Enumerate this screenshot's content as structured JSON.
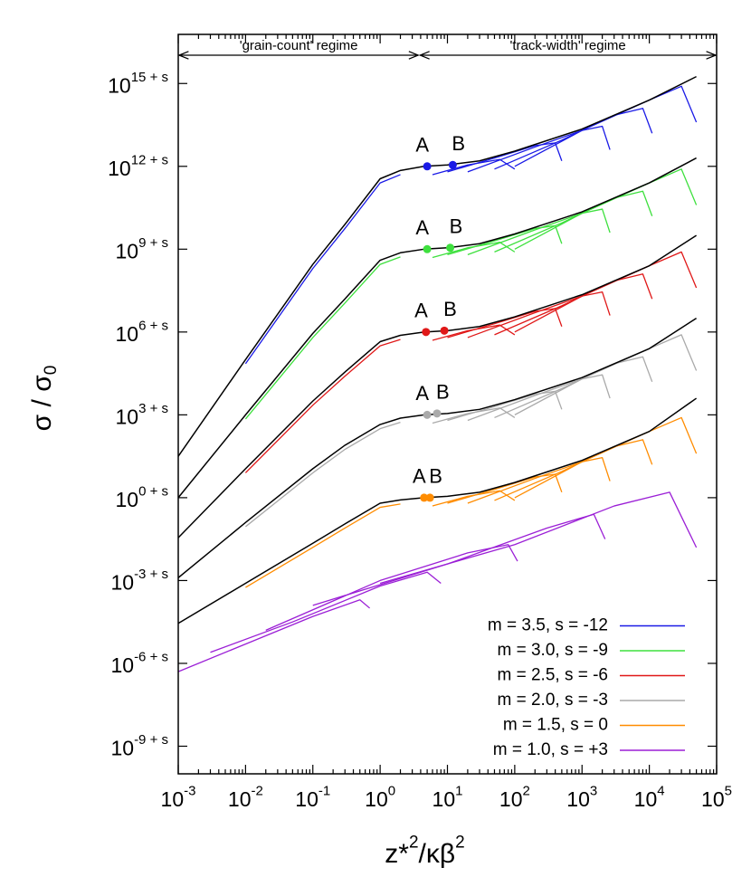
{
  "chart_data": {
    "type": "line",
    "xscale": "log",
    "yscale": "log",
    "xlim": [
      0.001,
      100000
    ],
    "ylim": [
      1e-10,
      6e+16
    ],
    "xticks": [
      {
        "value": 0.001,
        "label": "10",
        "sup": "-3"
      },
      {
        "value": 0.01,
        "label": "10",
        "sup": "-2"
      },
      {
        "value": 0.1,
        "label": "10",
        "sup": "-1"
      },
      {
        "value": 1,
        "label": "10",
        "sup": "0"
      },
      {
        "value": 10,
        "label": "10",
        "sup": "1"
      },
      {
        "value": 100,
        "label": "10",
        "sup": "2"
      },
      {
        "value": 1000,
        "label": "10",
        "sup": "3"
      },
      {
        "value": 10000,
        "label": "10",
        "sup": "4"
      },
      {
        "value": 100000,
        "label": "10",
        "sup": "5"
      }
    ],
    "yticks": [
      {
        "value": 1000000000000000.0,
        "label": "10",
        "sup": "15 + s"
      },
      {
        "value": 1000000000000.0,
        "label": "10",
        "sup": "12 + s"
      },
      {
        "value": 1000000000.0,
        "label": "10",
        "sup": "9 + s"
      },
      {
        "value": 1000000.0,
        "label": "10",
        "sup": "6 + s"
      },
      {
        "value": 1000.0,
        "label": "10",
        "sup": "3 + s"
      },
      {
        "value": 1,
        "label": "10",
        "sup": "0 + s"
      },
      {
        "value": 0.001,
        "label": "10",
        "sup": "-3 + s"
      },
      {
        "value": 1e-06,
        "label": "10",
        "sup": "-6 + s"
      },
      {
        "value": 1e-09,
        "label": "10",
        "sup": "-9 + s"
      }
    ],
    "minor_xticks": true,
    "xlabel": [
      {
        "text": "z*"
      },
      {
        "text": "2",
        "shift": "super"
      },
      {
        "text": "/κβ"
      },
      {
        "text": "2",
        "shift": "super"
      }
    ],
    "ylabel": [
      {
        "text": "σ / σ"
      },
      {
        "text": "0",
        "shift": "sub"
      }
    ],
    "legend": "lower right",
    "regime_boundary": 3.8,
    "annotations": [
      {
        "text": "'grain-count' regime"
      },
      {
        "text": "'track-width' regime"
      }
    ],
    "reference_curves": [
      {
        "color": "#000000",
        "x": [
          0.001,
          0.01,
          0.1,
          0.3,
          1,
          2,
          4.5,
          10,
          30,
          100,
          1000,
          10000,
          50000
        ],
        "values": [
          31.6,
          100000.0,
          282000000.0,
          7940000000.0,
          355000000000.0,
          708000000000.0,
          1000000000000.0,
          1120000000000.0,
          1580000000000.0,
          3550000000000.0,
          22400000000000.0,
          251000000000000.0,
          1780000000000000.0
        ]
      },
      {
        "color": "#000000",
        "x": [
          0.001,
          0.01,
          0.1,
          0.3,
          1,
          2,
          4.5,
          10,
          30,
          100,
          1000,
          10000,
          50000
        ],
        "values": [
          1,
          1000.0,
          891000.0,
          15800000.0,
          398000000.0,
          741000000.0,
          1000000000.0,
          1120000000.0,
          1580000000.0,
          3550000000.0,
          22400000000.0,
          251000000000.0,
          2000000000000.0
        ]
      },
      {
        "color": "#000000",
        "x": [
          0.001,
          0.01,
          0.1,
          0.3,
          1,
          2,
          4.5,
          10,
          30,
          100,
          1000,
          10000,
          50000
        ],
        "values": [
          0.0355,
          11.2,
          3160,
          35500,
          447000.0,
          759000.0,
          1000000.0,
          1120000.0,
          1580000.0,
          3550000.0,
          22400000.0,
          251000000.0,
          3160000000.0
        ]
      },
      {
        "color": "#000000",
        "x": [
          0.001,
          0.01,
          0.1,
          0.3,
          1,
          2,
          4.5,
          10,
          30,
          100,
          1000,
          10000,
          50000
        ],
        "values": [
          0.00126,
          0.126,
          11.2,
          79.4,
          447,
          759,
          1000,
          1120,
          1580,
          3550,
          22400,
          251000,
          3160000.0
        ]
      },
      {
        "color": "#000000",
        "x": [
          0.001,
          0.01,
          0.1,
          0.3,
          1,
          2,
          4.5,
          10,
          30,
          100,
          1000,
          10000,
          50000
        ],
        "values": [
          2.82e-05,
          0.000794,
          0.0224,
          0.112,
          0.631,
          0.832,
          1,
          1.12,
          1.58,
          3.55,
          22.4,
          251,
          3980
        ]
      }
    ],
    "series": [
      {
        "name": "m = 3.5, s = -12",
        "color": "#1a1ae6",
        "curves": [
          {
            "x": [
              0.01,
              0.1,
              0.3,
              1,
              2
            ],
            "values": [
              70800.0,
              200000000.0,
              5620000000.0,
              251000000000.0,
              501000000000.0
            ]
          },
          {
            "x": [
              6,
              20,
              60,
              100
            ],
            "values": [
              501000000000.0,
              1120000000000.0,
              1780000000000.0,
              794000000000.0
            ]
          },
          {
            "x": [
              10,
              50,
              200,
              400,
              500
            ],
            "values": [
              631000000000.0,
              2000000000000.0,
              5620000000000.0,
              7080000000000.0,
              1580000000000.0
            ]
          },
          {
            "x": [
              20,
              200,
              1000,
              2000,
              2600
            ],
            "values": [
              631000000000.0,
              5010000000000.0,
              20000000000000.0,
              28200000000000.0,
              3980000000000.0
            ]
          },
          {
            "x": [
              50,
              500,
              3000,
              8000,
              11000
            ],
            "values": [
              794000000000.0,
              8910000000000.0,
              70800000000000.0,
              126000000000000.0,
              15800000000000.0
            ]
          },
          {
            "x": [
              100,
              1000,
              10000,
              30000,
              50000
            ],
            "values": [
              1000000000000.0,
              20000000000000.0,
              251000000000000.0,
              794000000000000.0,
              39800000000000.0
            ]
          }
        ],
        "points": [
          {
            "label": "A",
            "x": 5,
            "y": 1000000000000.0
          },
          {
            "label": "B",
            "x": 12,
            "y": 1120000000000.0
          }
        ]
      },
      {
        "name": "m = 3.0, s = -9",
        "color": "#3ee03e",
        "curves": [
          {
            "x": [
              0.01,
              0.1,
              0.3,
              1,
              2
            ],
            "values": [
              708,
              631000.0,
              11200000.0,
              282000000.0,
              525000000.0
            ]
          },
          {
            "x": [
              6,
              20,
              60,
              100
            ],
            "values": [
              501000000.0,
              1120000000.0,
              1780000000.0,
              794000000.0
            ]
          },
          {
            "x": [
              10,
              50,
              200,
              400,
              500
            ],
            "values": [
              631000000.0,
              2000000000.0,
              5620000000.0,
              7080000000.0,
              1580000000.0
            ]
          },
          {
            "x": [
              20,
              200,
              1000,
              2000,
              2600
            ],
            "values": [
              631000000.0,
              5010000000.0,
              20000000000.0,
              28200000000.0,
              3980000000.0
            ]
          },
          {
            "x": [
              50,
              500,
              3000,
              8000,
              11000
            ],
            "values": [
              794000000.0,
              8910000000.0,
              70800000000.0,
              126000000000.0,
              15800000000.0
            ]
          },
          {
            "x": [
              100,
              1000,
              10000,
              30000,
              50000
            ],
            "values": [
              1000000000.0,
              20000000000.0,
              251000000000.0,
              794000000000.0,
              39800000000.0
            ]
          }
        ],
        "points": [
          {
            "label": "A",
            "x": 5,
            "y": 1000000000.0
          },
          {
            "label": "B",
            "x": 11,
            "y": 1120000000.0
          }
        ]
      },
      {
        "name": "m = 2.5, s = -6",
        "color": "#e01818",
        "curves": [
          {
            "x": [
              0.01,
              0.1,
              0.3,
              1,
              2
            ],
            "values": [
              7.94,
              2240,
              25100,
              316000.0,
              537000.0
            ]
          },
          {
            "x": [
              6,
              20,
              60,
              100
            ],
            "values": [
              501000.0,
              1120000.0,
              1780000.0,
              794000.0
            ]
          },
          {
            "x": [
              10,
              50,
              200,
              400,
              500
            ],
            "values": [
              631000.0,
              2000000.0,
              5620000.0,
              7080000.0,
              1580000.0
            ]
          },
          {
            "x": [
              20,
              200,
              1000,
              2000,
              2600
            ],
            "values": [
              631000.0,
              5010000.0,
              20000000.0,
              28200000.0,
              3980000.0
            ]
          },
          {
            "x": [
              50,
              500,
              3000,
              8000,
              11000
            ],
            "values": [
              794000.0,
              8910000.0,
              70800000.0,
              126000000.0,
              15800000.0
            ]
          },
          {
            "x": [
              100,
              1000,
              10000,
              30000,
              50000
            ],
            "values": [
              1000000.0,
              20000000.0,
              251000000.0,
              794000000.0,
              39800000.0
            ]
          }
        ],
        "points": [
          {
            "label": "A",
            "x": 4.8,
            "y": 1000000.0
          },
          {
            "label": "B",
            "x": 9,
            "y": 1120000.0
          }
        ]
      },
      {
        "name": "m = 2.0, s = -3",
        "color": "#aaaaaa",
        "curves": [
          {
            "x": [
              0.01,
              0.1,
              0.3,
              1,
              2
            ],
            "values": [
              0.0891,
              7.94,
              56.2,
              316,
              537
            ]
          },
          {
            "x": [
              6,
              20,
              60,
              100
            ],
            "values": [
              501,
              1120,
              1780,
              794
            ]
          },
          {
            "x": [
              10,
              50,
              200,
              400,
              500
            ],
            "values": [
              631,
              2000,
              5620,
              7080,
              1580
            ]
          },
          {
            "x": [
              20,
              200,
              1000,
              2000,
              2600
            ],
            "values": [
              631,
              5010,
              20000,
              28200,
              3980
            ]
          },
          {
            "x": [
              50,
              500,
              3000,
              8000,
              11000
            ],
            "values": [
              794,
              8910,
              70800,
              126000,
              15800
            ]
          },
          {
            "x": [
              100,
              1000,
              10000,
              30000,
              50000
            ],
            "values": [
              1000,
              20000,
              251000,
              794000,
              39800
            ]
          }
        ],
        "points": [
          {
            "label": "A",
            "x": 5,
            "y": 1000
          },
          {
            "label": "B",
            "x": 7,
            "y": 1120
          }
        ]
      },
      {
        "name": "m = 1.5, s = 0",
        "color": "#ff8c00",
        "curves": [
          {
            "x": [
              0.01,
              0.1,
              0.3,
              1,
              2
            ],
            "values": [
              0.000562,
              0.0158,
              0.0794,
              0.447,
              0.589
            ]
          },
          {
            "x": [
              6,
              20,
              60,
              100
            ],
            "values": [
              0.501,
              1.12,
              1.78,
              0.794
            ]
          },
          {
            "x": [
              10,
              50,
              200,
              400,
              500
            ],
            "values": [
              0.631,
              2.0,
              5.62,
              7.08,
              1.58
            ]
          },
          {
            "x": [
              20,
              200,
              1000,
              2000,
              2600
            ],
            "values": [
              0.631,
              5.01,
              20,
              28.2,
              3.98
            ]
          },
          {
            "x": [
              50,
              500,
              3000,
              8000,
              11000
            ],
            "values": [
              0.794,
              8.91,
              70.8,
              126,
              15.8
            ]
          },
          {
            "x": [
              100,
              1000,
              10000,
              30000,
              50000
            ],
            "values": [
              1,
              20,
              251,
              794,
              39.8
            ]
          }
        ],
        "points": [
          {
            "label": "A",
            "x": 4.5,
            "y": 1
          },
          {
            "label": "B",
            "x": 5.5,
            "y": 1
          }
        ]
      },
      {
        "name": "m = 1.0, s = +3",
        "color": "#9b1fd6",
        "curves": [
          {
            "x": [
              0.001,
              0.01,
              0.1,
              0.5,
              0.7
            ],
            "values": [
              5.01e-07,
              5.01e-06,
              5.01e-05,
              0.0002,
              0.0001
            ]
          },
          {
            "x": [
              0.003,
              0.05,
              1,
              5,
              8
            ],
            "values": [
              2.51e-06,
              3.16e-05,
              0.000631,
              0.002,
              0.000794
            ]
          },
          {
            "x": [
              0.02,
              1,
              20,
              80,
              110
            ],
            "values": [
              1.58e-05,
              0.001,
              0.01,
              0.02,
              0.00501
            ]
          },
          {
            "x": [
              0.1,
              10,
              300,
              1500,
              2200
            ],
            "values": [
              0.000126,
              0.00398,
              0.0794,
              0.251,
              0.0316
            ]
          },
          {
            "x": [
              1,
              100,
              3000,
              20000,
              50000
            ],
            "values": [
              0.000794,
              0.02,
              0.501,
              1.58,
              0.0158
            ]
          }
        ],
        "points": []
      }
    ]
  }
}
